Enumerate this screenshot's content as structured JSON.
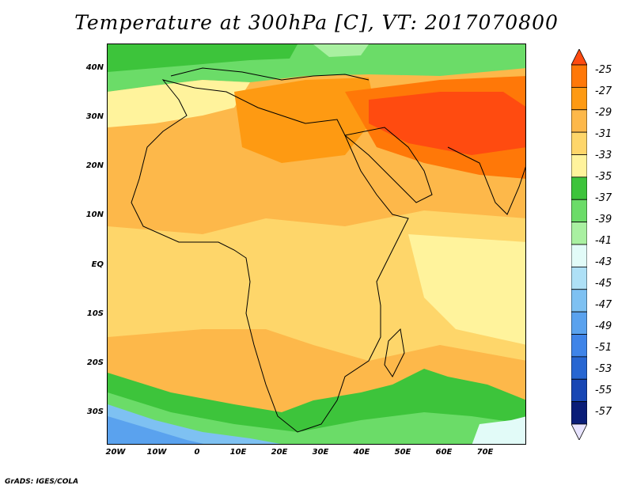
{
  "title": "Temperature at 300hPa [C], VT: 2017070800",
  "credit": "GrADS: IGES/COLA",
  "lat_labels": [
    "40N",
    "30N",
    "20N",
    "10N",
    "EQ",
    "10S",
    "20S",
    "30S"
  ],
  "lon_labels": [
    "20W",
    "10W",
    "0",
    "10E",
    "20E",
    "30E",
    "40E",
    "50E",
    "60E",
    "70E"
  ],
  "colorbar": {
    "labels": [
      "-25",
      "-27",
      "-29",
      "-31",
      "-33",
      "-35",
      "-37",
      "-39",
      "-41",
      "-43",
      "-45",
      "-47",
      "-49",
      "-51",
      "-53",
      "-55",
      "-57"
    ],
    "colors": [
      "#ff4b10",
      "#ff7808",
      "#fe9a12",
      "#fdb84a",
      "#fed66a",
      "#fff39c",
      "#3dc43b",
      "#6bdc68",
      "#a9f0a1",
      "#e2fbf8",
      "#aee0f6",
      "#7ec1f2",
      "#5aa2ee",
      "#3f84e8",
      "#2766d2",
      "#1746b4",
      "#0a1d78",
      "#e8e4ff"
    ]
  }
}
